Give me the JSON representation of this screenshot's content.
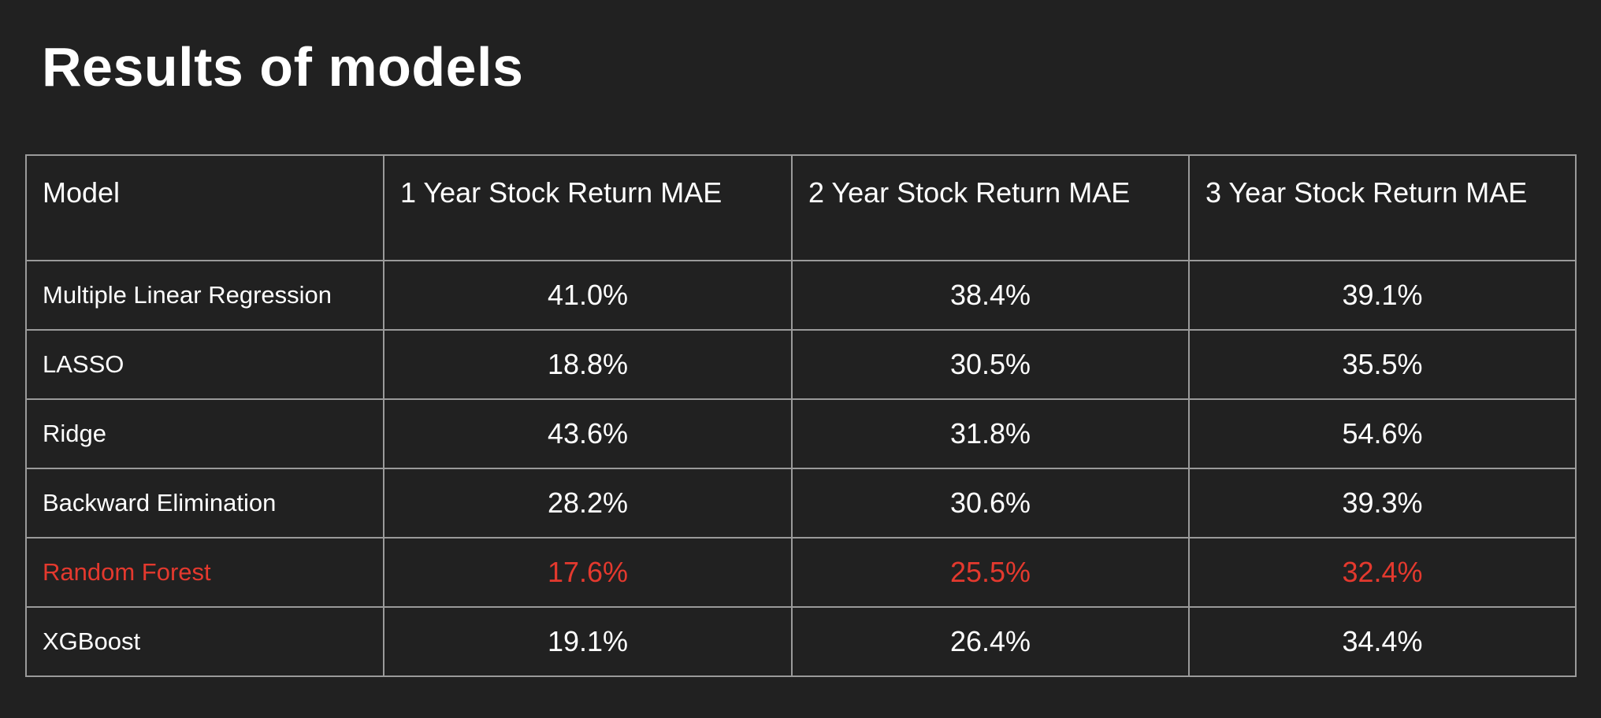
{
  "title": "Results of models",
  "colors": {
    "background": "#212121",
    "text": "#ffffff",
    "highlight": "#e4392e",
    "border": "#9a9a9a"
  },
  "table": {
    "headers": [
      "Model",
      "1 Year Stock Return MAE",
      "2 Year Stock Return MAE",
      "3 Year Stock Return MAE"
    ],
    "rows": [
      {
        "model": "Multiple Linear Regression",
        "values": [
          "41.0%",
          "38.4%",
          "39.1%"
        ]
      },
      {
        "model": "LASSO",
        "values": [
          "18.8%",
          "30.5%",
          "35.5%"
        ]
      },
      {
        "model": "Ridge",
        "values": [
          "43.6%",
          "31.8%",
          "54.6%"
        ]
      },
      {
        "model": "Backward Elimination",
        "values": [
          "28.2%",
          "30.6%",
          "39.3%"
        ]
      },
      {
        "model": "Random Forest",
        "values": [
          "17.6%",
          "25.5%",
          "32.4%"
        ],
        "highlighted": true
      },
      {
        "model": "XGBoost",
        "values": [
          "19.1%",
          "26.4%",
          "34.4%"
        ]
      }
    ]
  }
}
